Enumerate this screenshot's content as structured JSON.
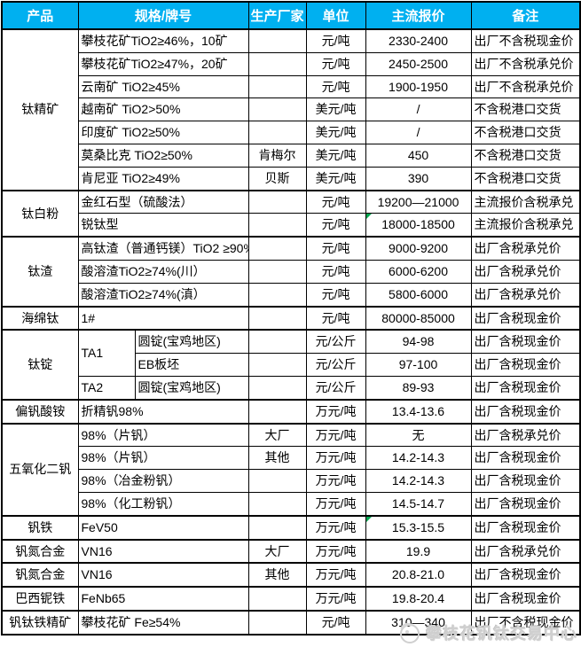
{
  "colors": {
    "header_bg": "#00b0f0",
    "header_text": "#ffffff",
    "border": "#000000",
    "flag_green": "#00a650",
    "logo_gray": "#cfcfcf"
  },
  "header": {
    "columns": [
      {
        "label": "产品",
        "colspan": 1
      },
      {
        "label": "规格/牌号",
        "colspan": 2
      },
      {
        "label": "生产厂家",
        "colspan": 1
      },
      {
        "label": "单位",
        "colspan": 1
      },
      {
        "label": "主流报价",
        "colspan": 1
      },
      {
        "label": "备注",
        "colspan": 1
      }
    ]
  },
  "rows": [
    {
      "product": "钛精矿",
      "product_span": 7,
      "spec": "攀枝花矿TiO2≥46%，10矿",
      "maker": "",
      "unit": "元/吨",
      "price": "2330-2400",
      "note": "出厂不含税现金价",
      "group_start": true
    },
    {
      "spec": "攀枝花矿TiO2≥47%，20矿",
      "maker": "",
      "unit": "元/吨",
      "price": "2450-2500",
      "note": "出厂不含税承兑价"
    },
    {
      "spec": "云南矿 TiO2≥45%",
      "maker": "",
      "unit": "元/吨",
      "price": "1900-1950",
      "note": "出厂不含税承兑价"
    },
    {
      "spec": "越南矿 TiO2>50%",
      "maker": "",
      "unit": "美元/吨",
      "price": "/",
      "note": "不含税港口交货"
    },
    {
      "spec": "印度矿 TiO2≥50%",
      "maker": "",
      "unit": "美元/吨",
      "price": "/",
      "note": "不含税港口交货"
    },
    {
      "spec": "莫桑比克 TiO2≥50%",
      "maker": "肯梅尔",
      "unit": "美元/吨",
      "price": "450",
      "note": "不含税港口交货"
    },
    {
      "spec": "肯尼亚 TiO2≥49%",
      "maker": "贝斯",
      "unit": "美元/吨",
      "price": "390",
      "note": "不含税港口交货"
    },
    {
      "product": "钛白粉",
      "product_span": 2,
      "spec": "金红石型（硫酸法）",
      "maker": "",
      "unit": "元/吨",
      "price": "19200—21000",
      "note": "主流报价含税承兑",
      "group_start": true
    },
    {
      "spec": "锐钛型",
      "maker": "",
      "unit": "元/吨",
      "price": "18000-18500",
      "note": "主流报价含税承兑",
      "price_flag": true
    },
    {
      "product": "钛渣",
      "product_span": 3,
      "spec": "高钛渣（普通钙镁）TiO2 ≥90%",
      "spec_small": true,
      "maker": "",
      "unit": "元/吨",
      "price": "9000-9200",
      "note": "出厂含税承兑价",
      "group_start": true
    },
    {
      "spec": "酸溶渣TiO2≥74%(川）",
      "maker": "",
      "unit": "元/吨",
      "price": "6000-6200",
      "note": "出厂含税承兑价"
    },
    {
      "spec": "酸溶渣TiO2≥74%(滇）",
      "maker": "",
      "unit": "元/吨",
      "price": "5800-6000",
      "note": "出厂含税承兑价"
    },
    {
      "product": "海绵钛",
      "product_span": 1,
      "spec": "1#",
      "maker": "",
      "unit": "元/吨",
      "price": "80000-85000",
      "note": "出厂含税现金价",
      "group_start": true
    },
    {
      "product": "钛锭",
      "product_span": 3,
      "grade": "TA1",
      "grade_span": 2,
      "spec": "圆锭(宝鸡地区)",
      "spec_colspan": 1,
      "maker": "",
      "unit": "元/公斤",
      "price": "94-98",
      "note": "出厂含税现金价",
      "group_start": true
    },
    {
      "spec": "EB板坯",
      "spec_colspan": 1,
      "maker": "",
      "unit": "元/公斤",
      "price": "97-100",
      "note": "出厂含税现金价"
    },
    {
      "grade": "TA2",
      "grade_span": 1,
      "spec": "圆锭(宝鸡地区)",
      "spec_colspan": 1,
      "maker": "",
      "unit": "元/公斤",
      "price": "89-93",
      "note": "出厂含税现金价"
    },
    {
      "product": "偏钒酸铵",
      "product_span": 1,
      "spec": "折精钒98%",
      "maker": "",
      "unit": "万元/吨",
      "price": "13.4-13.6",
      "note": "出厂含税现金价",
      "group_start": true
    },
    {
      "product": "五氧化二钒",
      "product_span": 4,
      "spec": "98%（片钒）",
      "maker": "大厂",
      "unit": "万元/吨",
      "price": "无",
      "note": "出厂含税承兑价",
      "group_start": true
    },
    {
      "spec": "98%（片钒）",
      "maker": "其他",
      "unit": "万元/吨",
      "price": "14.2-14.3",
      "note": "出厂含税现金价"
    },
    {
      "spec": "98%（冶金粉钒）",
      "maker": "",
      "unit": "万元/吨",
      "price": "14.2-14.3",
      "note": "出厂含税现金价"
    },
    {
      "spec": "98%（化工粉钒）",
      "maker": "",
      "unit": "万元/吨",
      "price": "14.5-14.7",
      "note": "出厂含税现金价"
    },
    {
      "product": "钒铁",
      "product_span": 1,
      "spec": "FeV50",
      "maker": "",
      "unit": "万元/吨",
      "price": "15.3-15.5",
      "note": "出厂含税现金价",
      "price_flag": true,
      "group_start": true
    },
    {
      "product": "钒氮合金",
      "product_span": 1,
      "spec": "VN16",
      "maker": "大厂",
      "unit": "万元/吨",
      "price": "19.9",
      "note": "出厂含税承兑价",
      "group_start": true
    },
    {
      "product": "钒氮合金",
      "product_span": 1,
      "spec": "VN16",
      "maker": "其他",
      "unit": "万元/吨",
      "price": "20.8-21.0",
      "note": "出厂含税现金价",
      "group_start": true
    },
    {
      "product": "巴西铌铁",
      "product_span": 1,
      "spec": "FeNb65",
      "maker": "",
      "unit": "万元/吨",
      "price": "19.8-20.4",
      "note": "出厂含税现金价",
      "group_start": true
    },
    {
      "product": "钒钛铁精矿",
      "product_span": 1,
      "spec": "攀枝花矿 Fe≥54%",
      "maker": "",
      "unit": "元/吨",
      "price": "310—340",
      "note": "出厂不含税现金价",
      "group_start": true
    }
  ],
  "footer": {
    "logo_text": "攀枝花钒钛交易中心"
  }
}
